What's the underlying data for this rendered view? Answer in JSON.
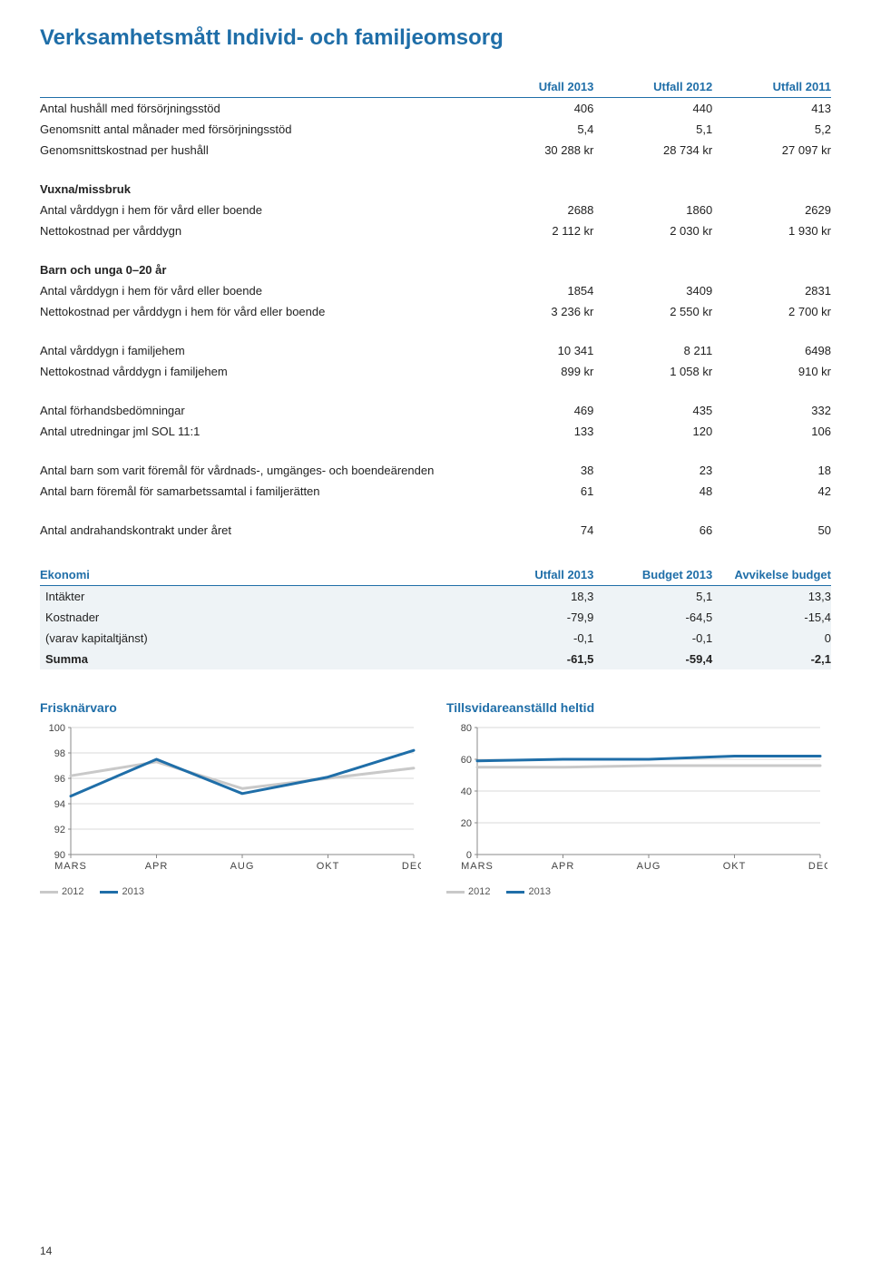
{
  "page_number": "14",
  "title": "Verksamhetsmått Individ- och familjeomsorg",
  "main_table": {
    "headers": [
      "",
      "Ufall 2013",
      "Utfall 2012",
      "Utfall 2011"
    ],
    "rows": [
      {
        "type": "data",
        "cells": [
          "Antal hushåll med försörjningsstöd",
          "406",
          "440",
          "413"
        ]
      },
      {
        "type": "data",
        "cells": [
          "Genomsnitt antal månader med försörjningsstöd",
          "5,4",
          "5,1",
          "5,2"
        ]
      },
      {
        "type": "data",
        "cells": [
          "Genomsnittskostnad per hushåll",
          "30 288 kr",
          "28 734 kr",
          "27 097 kr"
        ]
      },
      {
        "type": "spacer"
      },
      {
        "type": "group",
        "cells": [
          "Vuxna/missbruk",
          "",
          "",
          ""
        ]
      },
      {
        "type": "data",
        "cells": [
          "Antal vårddygn i hem för vård eller boende",
          "2688",
          "1860",
          "2629"
        ]
      },
      {
        "type": "data",
        "cells": [
          "Nettokostnad per vårddygn",
          "2 112 kr",
          "2 030 kr",
          "1 930 kr"
        ]
      },
      {
        "type": "spacer"
      },
      {
        "type": "group",
        "cells": [
          "Barn och unga 0–20 år",
          "",
          "",
          ""
        ]
      },
      {
        "type": "data",
        "cells": [
          "Antal vårddygn i hem för vård eller boende",
          "1854",
          "3409",
          "2831"
        ]
      },
      {
        "type": "data",
        "cells": [
          "Nettokostnad per vårddygn i hem för vård eller boende",
          "3 236 kr",
          "2 550 kr",
          "2 700 kr"
        ]
      },
      {
        "type": "spacer"
      },
      {
        "type": "data",
        "cells": [
          "Antal vårddygn i familjehem",
          "10 341",
          "8 211",
          "6498"
        ]
      },
      {
        "type": "data",
        "cells": [
          "Nettokostnad vårddygn i familjehem",
          "899 kr",
          "1 058 kr",
          "910 kr"
        ]
      },
      {
        "type": "spacer"
      },
      {
        "type": "data",
        "cells": [
          "Antal förhandsbedömningar",
          "469",
          "435",
          "332"
        ]
      },
      {
        "type": "data",
        "cells": [
          "Antal utredningar jml SOL 11:1",
          "133",
          "120",
          "106"
        ]
      },
      {
        "type": "spacer"
      },
      {
        "type": "data",
        "cells": [
          "Antal barn som varit föremål för vårdnads-, umgänges- och boendeärenden",
          "38",
          "23",
          "18"
        ]
      },
      {
        "type": "data",
        "cells": [
          "Antal barn föremål för samarbetssamtal i familjerätten",
          "61",
          "48",
          "42"
        ]
      },
      {
        "type": "spacer"
      },
      {
        "type": "data",
        "cells": [
          "Antal andrahandskontrakt under året",
          "74",
          "66",
          "50"
        ]
      }
    ]
  },
  "econ_table": {
    "headers": [
      "Ekonomi",
      "Utfall 2013",
      "Budget 2013",
      "Avvikelse budget"
    ],
    "rows": [
      {
        "type": "data",
        "cells": [
          "Intäkter",
          "18,3",
          "5,1",
          "13,3"
        ]
      },
      {
        "type": "data",
        "cells": [
          "Kostnader",
          "-79,9",
          "-64,5",
          "-15,4"
        ]
      },
      {
        "type": "data",
        "cells": [
          "(varav kapitaltjänst)",
          "-0,1",
          "-0,1",
          "0"
        ]
      },
      {
        "type": "sum",
        "cells": [
          "Summa",
          "-61,5",
          "-59,4",
          "-2,1"
        ]
      }
    ]
  },
  "chart1": {
    "title": "Frisknärvaro",
    "type": "line",
    "ylim": [
      90,
      100
    ],
    "yticks": [
      90,
      92,
      94,
      96,
      98,
      100
    ],
    "categories": [
      "MARS",
      "APR",
      "AUG",
      "OKT",
      "DEC"
    ],
    "series": [
      {
        "name": "2012",
        "color": "#c9c9c9",
        "width": 3,
        "values": [
          96.2,
          97.3,
          95.2,
          96.0,
          96.8
        ]
      },
      {
        "name": "2013",
        "color": "#1f6ea8",
        "width": 3,
        "values": [
          94.6,
          97.5,
          94.8,
          96.1,
          98.2
        ]
      }
    ],
    "grid_color": "#d9d9d9",
    "axis_color": "#888",
    "label_fontsize": 11
  },
  "chart2": {
    "title": "Tillsvidareanställd heltid",
    "type": "line",
    "ylim": [
      0,
      80
    ],
    "yticks": [
      0,
      20,
      40,
      60,
      80
    ],
    "categories": [
      "MARS",
      "APR",
      "AUG",
      "OKT",
      "DEC"
    ],
    "series": [
      {
        "name": "2012",
        "color": "#c9c9c9",
        "width": 3,
        "values": [
          55,
          55,
          56,
          56,
          56
        ]
      },
      {
        "name": "2013",
        "color": "#1f6ea8",
        "width": 3,
        "values": [
          59,
          60,
          60,
          62,
          62
        ]
      }
    ],
    "grid_color": "#d9d9d9",
    "axis_color": "#888",
    "label_fontsize": 11
  }
}
